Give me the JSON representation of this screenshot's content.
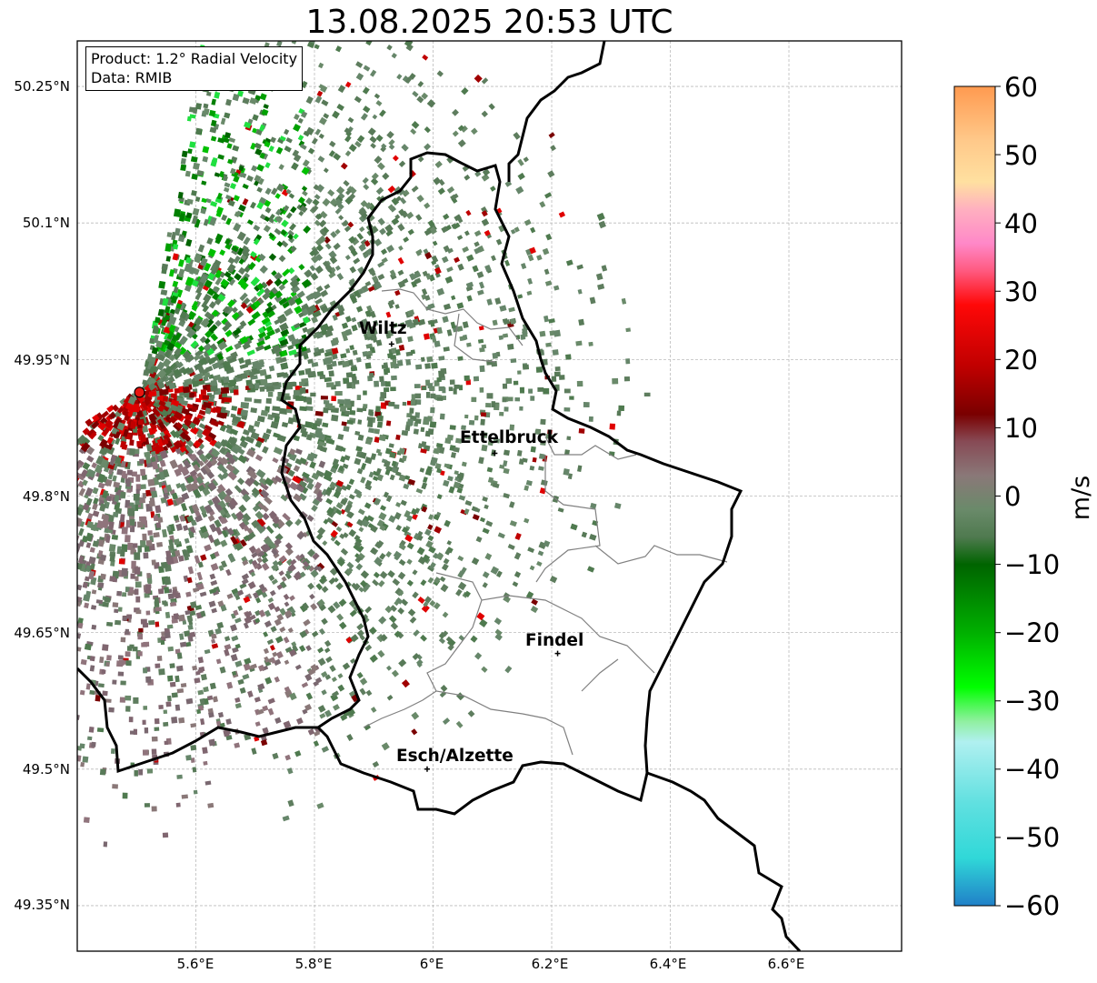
{
  "title": "13.08.2025 20:53 UTC",
  "info_box": {
    "product": "Product: 1.2° Radial Velocity",
    "data_source": "Data: RMIB"
  },
  "cities": [
    {
      "name": "Wiltz",
      "lon": 5.93,
      "lat": 49.967
    },
    {
      "name": "Ettelbruck",
      "lon": 6.104,
      "lat": 49.847
    },
    {
      "name": "Findel",
      "lon": 6.21,
      "lat": 49.627
    },
    {
      "name": "Esch/Alzette",
      "lon": 5.99,
      "lat": 49.5
    }
  ],
  "radar_site": {
    "lon": 5.505,
    "lat": 49.914,
    "color": "#e8150f"
  },
  "lat_ticks": [
    "50.25°N",
    "50.1°N",
    "49.95°N",
    "49.8°N",
    "49.65°N",
    "49.5°N",
    "49.35°N"
  ],
  "lon_ticks": [
    "5.6°E",
    "5.8°E",
    "6°E",
    "6.2°E",
    "6.4°E",
    "6.6°E"
  ],
  "extent": {
    "lon_min": 5.4,
    "lon_max": 6.79,
    "lat_min": 49.3,
    "lat_max": 50.3
  },
  "colorbar": {
    "label": "m/s",
    "ticks": [
      "60",
      "50",
      "40",
      "30",
      "20",
      "10",
      "0",
      "−10",
      "−20",
      "−30",
      "−40",
      "−50",
      "−60"
    ],
    "range": [
      -60,
      60
    ],
    "stops": [
      {
        "v": 60,
        "c": "#ff9a50"
      },
      {
        "v": 52,
        "c": "#ffc98a"
      },
      {
        "v": 46,
        "c": "#ffe0a0"
      },
      {
        "v": 42,
        "c": "#ffb0c0"
      },
      {
        "v": 37,
        "c": "#ff88c8"
      },
      {
        "v": 33,
        "c": "#ff5a80"
      },
      {
        "v": 28,
        "c": "#ff0808"
      },
      {
        "v": 19,
        "c": "#c00000"
      },
      {
        "v": 12,
        "c": "#7a0000"
      },
      {
        "v": 8,
        "c": "#874a55"
      },
      {
        "v": 3,
        "c": "#8a7878"
      },
      {
        "v": -2,
        "c": "#6a8a6a"
      },
      {
        "v": -6,
        "c": "#4f7a4f"
      },
      {
        "v": -10,
        "c": "#006400"
      },
      {
        "v": -20,
        "c": "#00b000"
      },
      {
        "v": -28,
        "c": "#00ff00"
      },
      {
        "v": -33,
        "c": "#90f0a0"
      },
      {
        "v": -36,
        "c": "#b0f0f0"
      },
      {
        "v": -45,
        "c": "#60e0e0"
      },
      {
        "v": -53,
        "c": "#30d8d8"
      },
      {
        "v": -60,
        "c": "#2080c8"
      }
    ]
  }
}
